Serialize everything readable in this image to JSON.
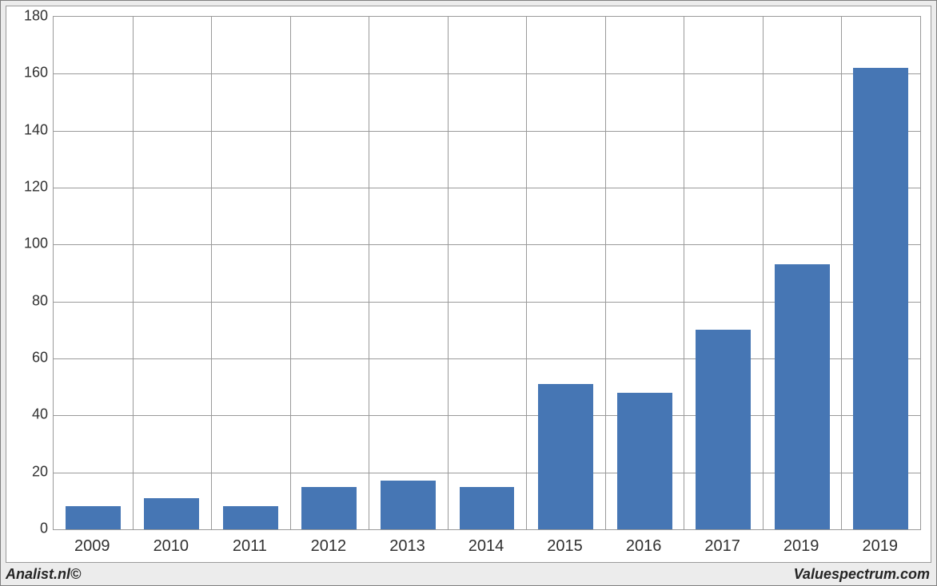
{
  "chart": {
    "type": "bar",
    "categories": [
      "2009",
      "2010",
      "2011",
      "2012",
      "2013",
      "2014",
      "2015",
      "2016",
      "2017",
      "2019",
      "2019"
    ],
    "values": [
      8,
      11,
      8,
      15,
      17,
      15,
      51,
      48,
      70,
      93,
      162
    ],
    "bar_color": "#4676b4",
    "bar_width_ratio": 0.7,
    "background_color": "#ffffff",
    "grid_color": "#9a9a9a",
    "ylim": [
      0,
      180
    ],
    "ytick_step": 20,
    "tick_label_fontsize": 18,
    "x_tick_label_fontsize": 20,
    "tick_label_color": "#303030"
  },
  "footer": {
    "left_text": "Analist.nl©",
    "right_text": "Valuespectrum.com"
  }
}
